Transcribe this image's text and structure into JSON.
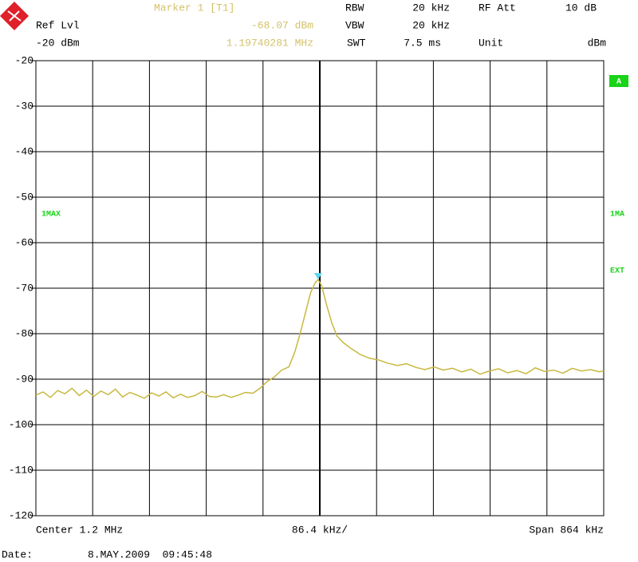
{
  "header": {
    "ref_lvl": "Ref Lvl",
    "ref_value": "-20 dBm",
    "rbw": "RBW",
    "rbw_value": "20 kHz",
    "vbw": "VBW",
    "vbw_value": "20 kHz",
    "swt": "SWT",
    "swt_value": "7.5 ms",
    "rf_att": "RF Att",
    "rf_att_value": "10 dB",
    "unit": "Unit",
    "unit_value": "dBm"
  },
  "chart_data": {
    "type": "line",
    "marker": {
      "label": "Marker 1 [T1]",
      "level_label": "-68.07 dBm",
      "level": -68.07,
      "freq_label": "1.19740281 MHz",
      "freq": 1.19740281,
      "color": "#5fd7f0"
    },
    "x": [
      0.768,
      0.779,
      0.79,
      0.801,
      0.812,
      0.823,
      0.834,
      0.845,
      0.856,
      0.867,
      0.878,
      0.889,
      0.9,
      0.911,
      0.922,
      0.933,
      0.944,
      0.955,
      0.966,
      0.977,
      0.988,
      0.999,
      1.01,
      1.021,
      1.032,
      1.043,
      1.054,
      1.065,
      1.076,
      1.087,
      1.098,
      1.109,
      1.12,
      1.131,
      1.142,
      1.153,
      1.162,
      1.17,
      1.178,
      1.186,
      1.193,
      1.1974,
      1.203,
      1.21,
      1.218,
      1.226,
      1.236,
      1.248,
      1.262,
      1.276,
      1.29,
      1.304,
      1.318,
      1.332,
      1.346,
      1.36,
      1.374,
      1.388,
      1.402,
      1.416,
      1.43,
      1.444,
      1.458,
      1.472,
      1.486,
      1.5,
      1.514,
      1.528,
      1.542,
      1.556,
      1.57,
      1.584,
      1.598,
      1.612,
      1.626,
      1.632
    ],
    "series": [
      {
        "name": "1MAX",
        "color": "#c8b840",
        "values": [
          -93.5,
          -92.8,
          -94.0,
          -92.5,
          -93.2,
          -92.0,
          -93.6,
          -92.4,
          -93.8,
          -92.6,
          -93.4,
          -92.2,
          -93.9,
          -92.9,
          -93.5,
          -94.2,
          -93.0,
          -93.7,
          -92.8,
          -94.1,
          -93.3,
          -94.0,
          -93.6,
          -92.7,
          -93.8,
          -93.9,
          -93.4,
          -94.0,
          -93.5,
          -92.9,
          -93.1,
          -92.0,
          -90.5,
          -89.5,
          -88.0,
          -87.3,
          -84.0,
          -80.0,
          -75.5,
          -71.0,
          -68.8,
          -68.07,
          -69.5,
          -73.5,
          -77.5,
          -80.5,
          -82.0,
          -83.3,
          -84.6,
          -85.4,
          -85.8,
          -86.5,
          -87.0,
          -86.6,
          -87.4,
          -87.9,
          -87.3,
          -88.0,
          -87.6,
          -88.4,
          -87.8,
          -88.9,
          -88.2,
          -87.7,
          -88.6,
          -88.1,
          -88.8,
          -87.5,
          -88.3,
          -88.0,
          -88.7,
          -87.6,
          -88.2,
          -87.9,
          -88.4,
          -88.1
        ]
      }
    ],
    "xlim": [
      0.768,
      1.632
    ],
    "ylim": [
      -120,
      -20
    ],
    "yticks": [
      -20,
      -30,
      -40,
      -50,
      -60,
      -70,
      -80,
      -90,
      -100,
      -110,
      -120
    ],
    "grid": true,
    "side_labels": {
      "trace": "1MA",
      "screen": "A",
      "ext": "EXT"
    },
    "x_labels": {
      "center": "Center 1.2 MHz",
      "division": "86.4 kHz/",
      "span": "Span 864 kHz"
    }
  },
  "footer": {
    "date_label": "Date:",
    "date": "8.MAY.2009  09:45:48"
  }
}
